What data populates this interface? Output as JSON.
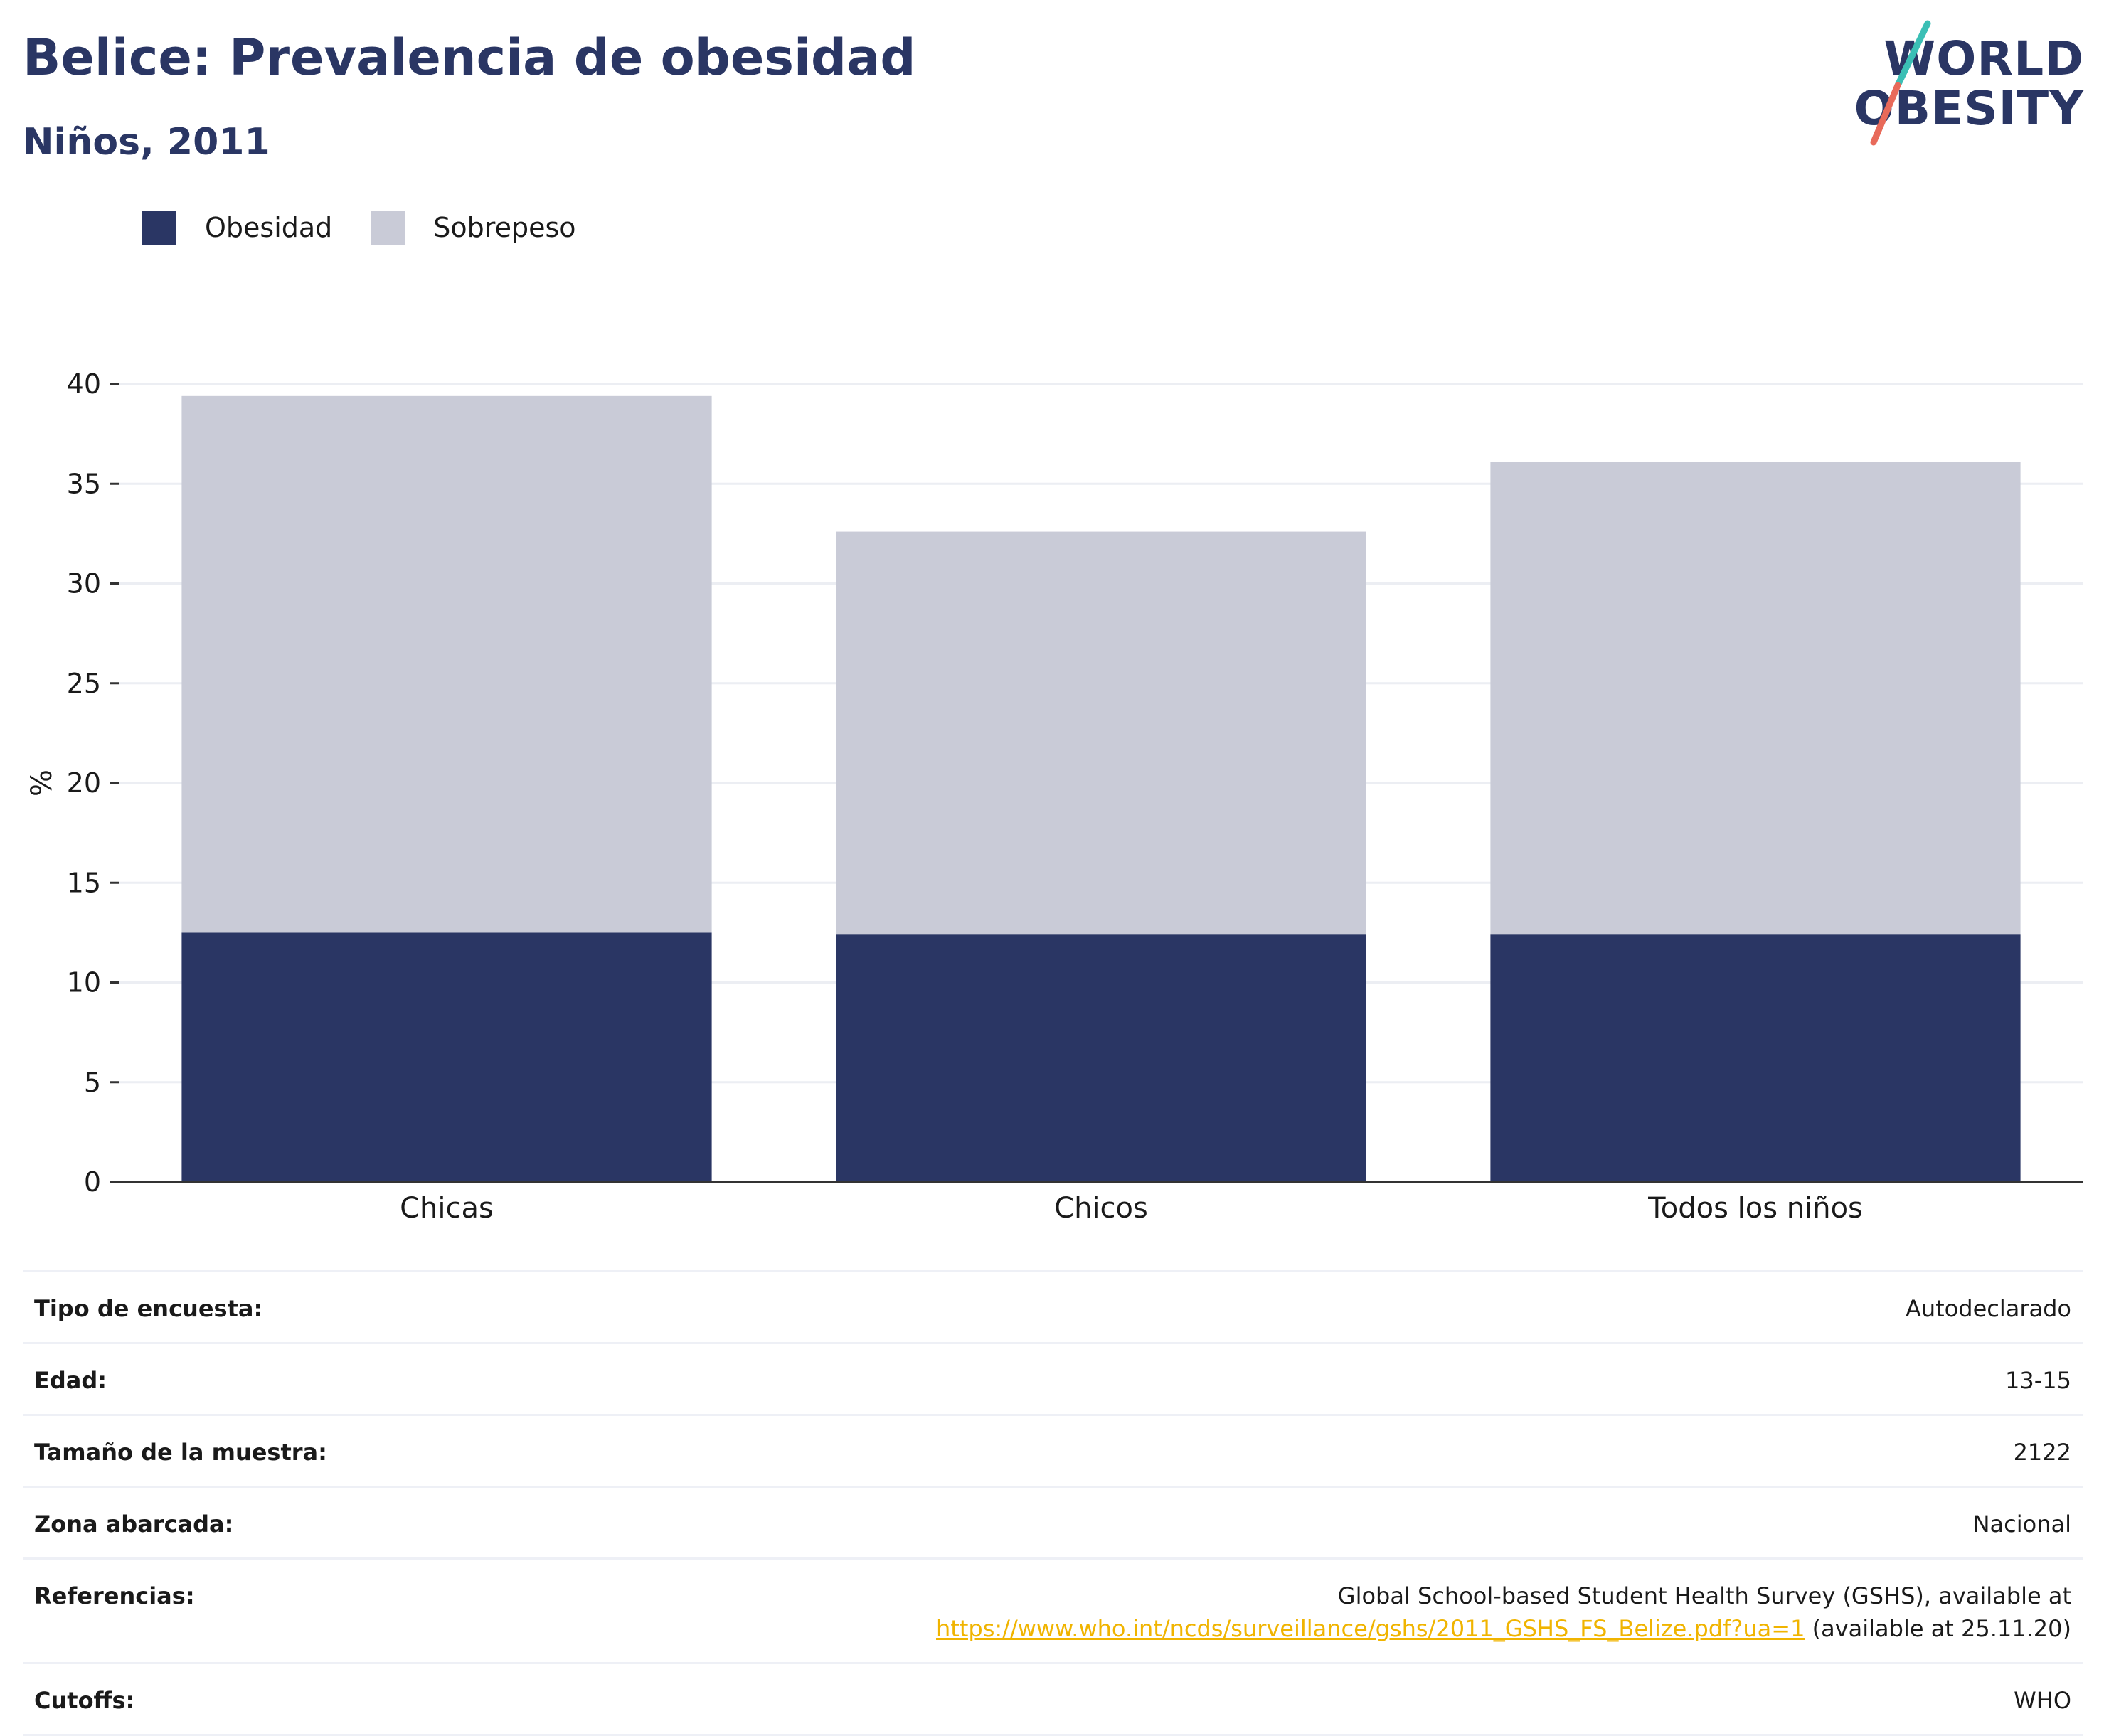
{
  "header": {
    "title": "Belice: Prevalencia de obesidad",
    "subtitle": "Niños, 2011"
  },
  "logo": {
    "line1": "WORLD",
    "line2": "OBESITY",
    "slash_colors": [
      "#3bbfb5",
      "#e86a5a"
    ]
  },
  "legend": [
    {
      "label": "Obesidad",
      "color": "#2a3664"
    },
    {
      "label": "Sobrepeso",
      "color": "#c9cbd7"
    }
  ],
  "chart_data": {
    "type": "bar",
    "stacked": true,
    "categories": [
      "Chicas",
      "Chicos",
      "Todos los niños"
    ],
    "series": [
      {
        "name": "Obesidad",
        "color": "#2a3664",
        "values": [
          12.5,
          12.4,
          12.4
        ]
      },
      {
        "name": "Sobrepeso",
        "color": "#c9cbd7",
        "values": [
          26.9,
          20.2,
          23.7
        ]
      }
    ],
    "ylabel": "%",
    "xlabel": "",
    "ylim": [
      0,
      40
    ],
    "yticks": [
      0,
      5,
      10,
      15,
      20,
      25,
      30,
      35,
      40
    ],
    "grid": true,
    "legend_position": "top-left"
  },
  "info_table": [
    {
      "label": "Tipo de encuesta:",
      "value": "Autodeclarado"
    },
    {
      "label": "Edad:",
      "value": "13-15"
    },
    {
      "label": "Tamaño de la muestra:",
      "value": "2122"
    },
    {
      "label": "Zona abarcada:",
      "value": "Nacional"
    },
    {
      "label": "Referencias:",
      "value": "Global School-based Student Health Survey (GSHS), available at",
      "link": "https://www.who.int/ncds/surveillance/gshs/2011_GSHS_FS_Belize.pdf?ua=1",
      "suffix": " (available at 25.11.20)"
    },
    {
      "label": "Cutoffs:",
      "value": "WHO"
    }
  ],
  "colors": {
    "brand": "#2a3664",
    "link": "#f0b400",
    "grid": "#eceef3"
  }
}
